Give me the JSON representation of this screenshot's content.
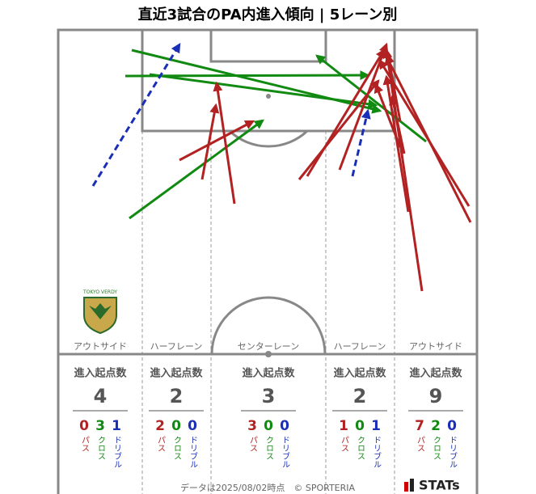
{
  "title": "直近3試合のPA内進入傾向 | 5レーン別",
  "logo_text": "TOKYO VERDY",
  "lanes": [
    {
      "name": "アウトサイド",
      "label": "進入起点数",
      "total": "4",
      "counts": [
        "0",
        "3",
        "1"
      ]
    },
    {
      "name": "ハーフレーン",
      "label": "進入起点数",
      "total": "2",
      "counts": [
        "2",
        "0",
        "0"
      ]
    },
    {
      "name": "センターレーン",
      "label": "進入起点数",
      "total": "3",
      "counts": [
        "3",
        "0",
        "0"
      ]
    },
    {
      "name": "ハーフレーン",
      "label": "進入起点数",
      "total": "2",
      "counts": [
        "1",
        "0",
        "1"
      ]
    },
    {
      "name": "アウトサイド",
      "label": "進入起点数",
      "total": "9",
      "counts": [
        "7",
        "2",
        "0"
      ]
    }
  ],
  "types": [
    "パス",
    "クロス",
    "ドリブル"
  ],
  "footer": "データは2025/08/02時点　© SPORTERIA",
  "brand": "STATs"
}
